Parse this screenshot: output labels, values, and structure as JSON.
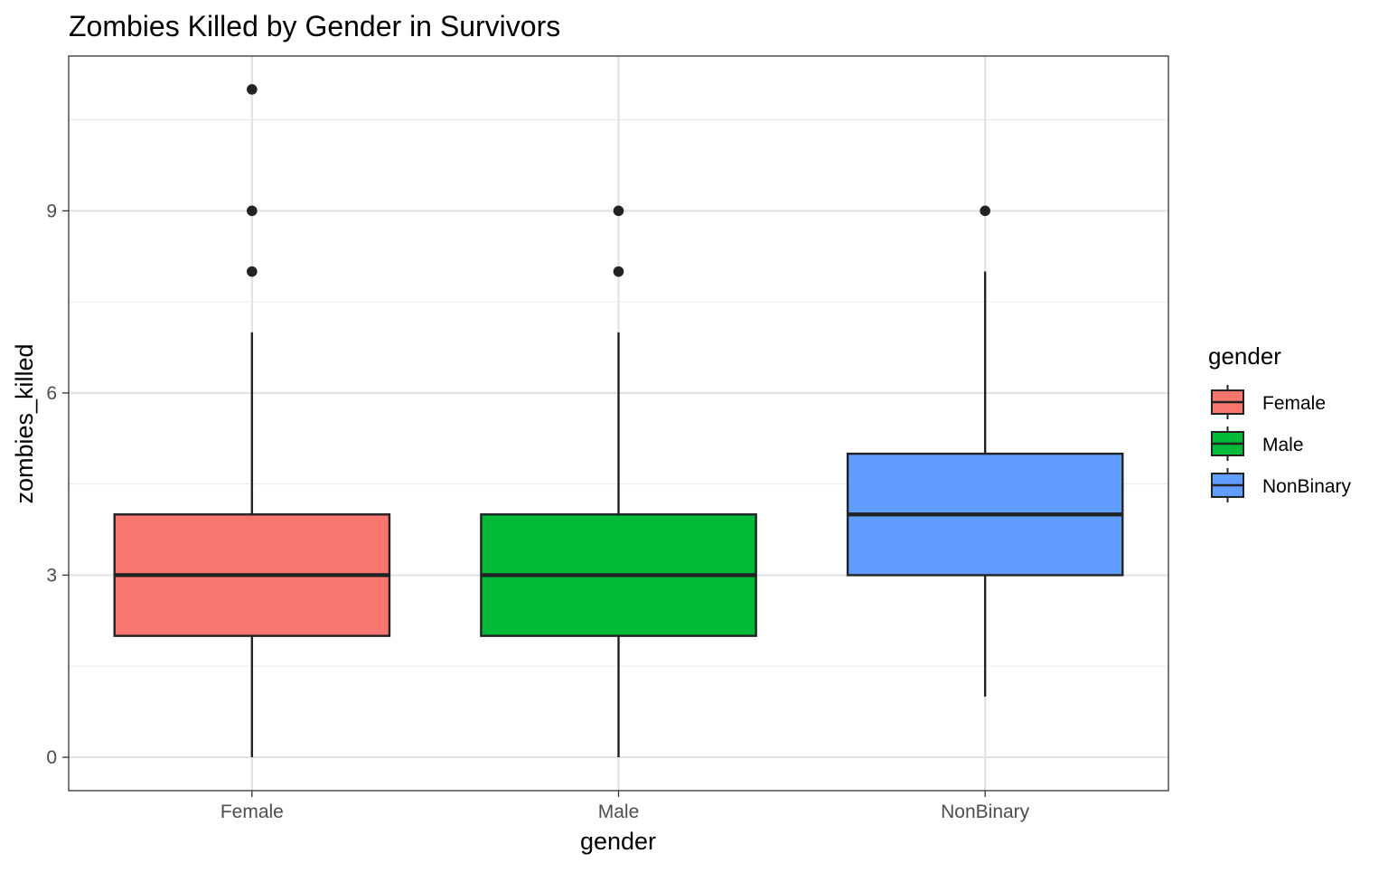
{
  "chart_data": {
    "type": "boxplot",
    "title": "Zombies Killed by Gender in Survivors",
    "xlabel": "gender",
    "ylabel": "zombies_killed",
    "ylim": [
      -0.55,
      11.55
    ],
    "yticks": [
      0,
      3,
      6,
      9
    ],
    "grid": true,
    "legend": {
      "title": "gender",
      "placement": "right"
    },
    "categories": [
      "Female",
      "Male",
      "NonBinary"
    ],
    "series": [
      {
        "name": "Female",
        "color": "#F8766D",
        "whisker_low": 0,
        "q1": 2,
        "median": 3,
        "q3": 4,
        "whisker_high": 7,
        "outliers": [
          8,
          9,
          11
        ]
      },
      {
        "name": "Male",
        "color": "#00BA38",
        "whisker_low": 0,
        "q1": 2,
        "median": 3,
        "q3": 4,
        "whisker_high": 7,
        "outliers": [
          8,
          9
        ]
      },
      {
        "name": "NonBinary",
        "color": "#619CFF",
        "whisker_low": 1,
        "q1": 3,
        "median": 4,
        "q3": 5,
        "whisker_high": 8,
        "outliers": [
          9
        ]
      }
    ]
  }
}
